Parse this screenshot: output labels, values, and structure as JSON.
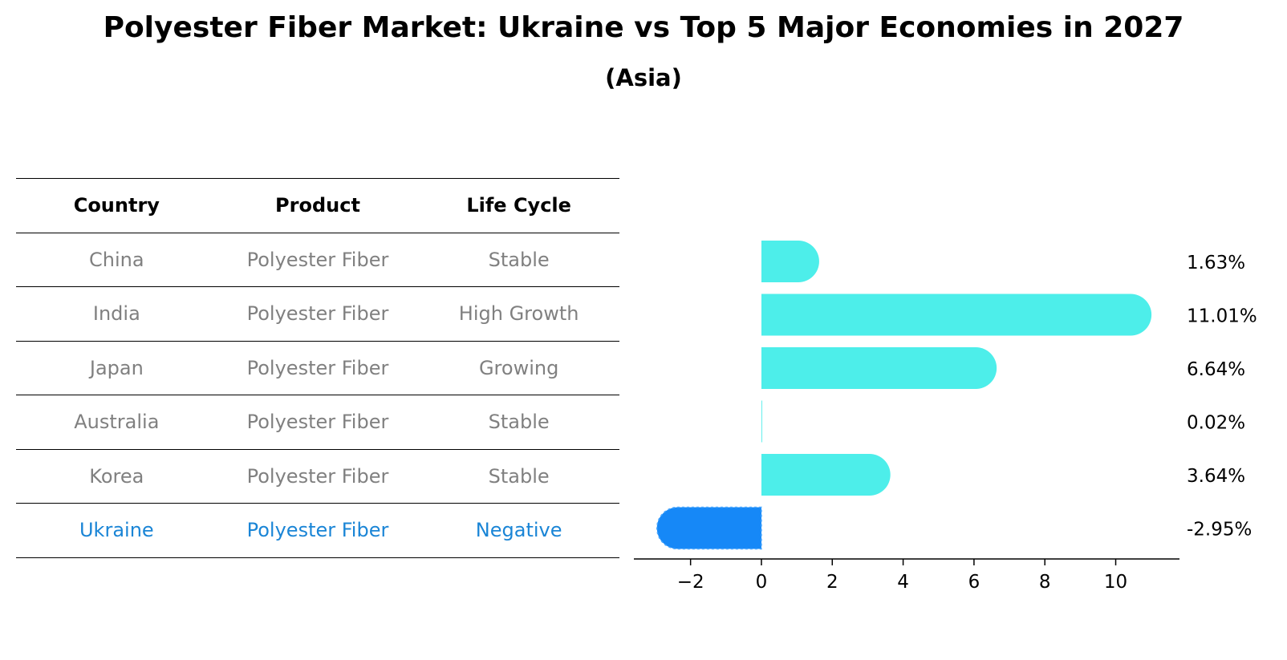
{
  "title": "Polyester Fiber Market: Ukraine vs Top 5 Major Economies in 2027",
  "subtitle": "(Asia)",
  "table": {
    "headers": [
      "Country",
      "Product",
      "Life Cycle"
    ],
    "rows": [
      {
        "country": "China",
        "product": "Polyester Fiber",
        "life_cycle": "Stable"
      },
      {
        "country": "India",
        "product": "Polyester Fiber",
        "life_cycle": "High Growth"
      },
      {
        "country": "Japan",
        "product": "Polyester Fiber",
        "life_cycle": "Growing"
      },
      {
        "country": "Australia",
        "product": "Polyester Fiber",
        "life_cycle": "Stable"
      },
      {
        "country": "Korea",
        "product": "Polyester Fiber",
        "life_cycle": "Stable"
      },
      {
        "country": "Ukraine",
        "product": "Polyester Fiber",
        "life_cycle": "Negative"
      }
    ]
  },
  "chart_data": {
    "type": "bar",
    "orientation": "horizontal",
    "categories": [
      "China",
      "India",
      "Japan",
      "Australia",
      "Korea",
      "Ukraine"
    ],
    "values": [
      1.63,
      11.01,
      6.64,
      0.02,
      3.64,
      -2.95
    ],
    "labels": [
      "1.63%",
      "11.01%",
      "6.64%",
      "0.02%",
      "3.64%",
      "-2.95%"
    ],
    "xlim": [
      -3.6,
      11.8
    ],
    "xticks": [
      -2,
      0,
      2,
      4,
      6,
      8,
      10
    ],
    "xtick_labels": [
      "−2",
      "0",
      "2",
      "4",
      "6",
      "8",
      "10"
    ],
    "colors": {
      "positive": "#4deeea",
      "negative": "#1688f7",
      "highlight_text": "#1a85d6",
      "muted_text": "#808080"
    }
  }
}
